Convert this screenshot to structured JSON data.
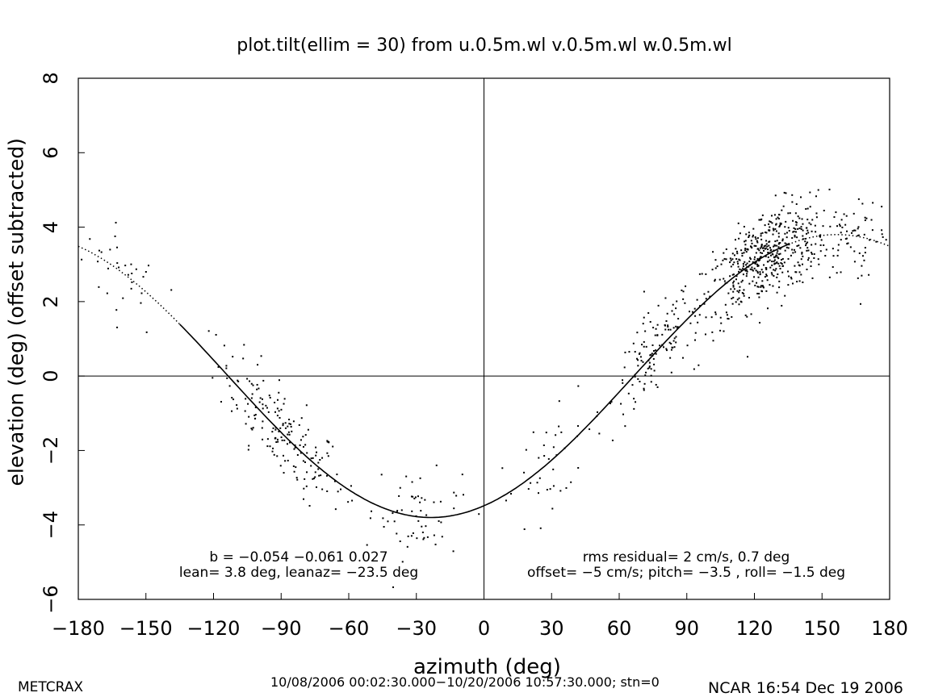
{
  "chart_data": {
    "type": "scatter",
    "title": "plot.tilt(ellim = 30) from u.0.5m.wl v.0.5m.wl w.0.5m.wl",
    "xlabel": "azimuth (deg)",
    "ylabel": "elevation (deg)  (offset subtracted)",
    "xlim": [
      -180,
      180
    ],
    "ylim": [
      -6,
      8
    ],
    "xticks": [
      -180,
      -150,
      -120,
      -90,
      -60,
      -30,
      0,
      30,
      60,
      90,
      120,
      150,
      180
    ],
    "yticks": [
      -6,
      -4,
      -2,
      0,
      2,
      4,
      6,
      8
    ],
    "grid": false,
    "reference_lines": {
      "x": 0,
      "y": 0
    },
    "fit": {
      "description": "sinusoidal tilt fit",
      "lean_deg": 3.8,
      "leanaz_deg": -23.5,
      "solid_x_range": [
        -135,
        135
      ]
    },
    "point_clusters": [
      {
        "x_center": -160,
        "x_spread": 18,
        "count": 30
      },
      {
        "x_center": -90,
        "x_spread": 28,
        "count": 180
      },
      {
        "x_center": -30,
        "x_spread": 20,
        "count": 60
      },
      {
        "x_center": 30,
        "x_spread": 25,
        "count": 40
      },
      {
        "x_center": 75,
        "x_spread": 18,
        "count": 120
      },
      {
        "x_center": 125,
        "x_spread": 28,
        "count": 520
      },
      {
        "x_center": 165,
        "x_spread": 15,
        "count": 60
      }
    ],
    "annotations": {
      "left_line1": "b = −0.054 −0.061  0.027",
      "left_line2": "lean= 3.8 deg, leanaz= −23.5 deg",
      "right_line1": "rms residual= 2 cm/s, 0.7 deg",
      "right_line2": "offset= −5 cm/s; pitch= −3.5 , roll= −1.5 deg"
    }
  },
  "footer": {
    "left": "METCRAX",
    "middle": "10/08/2006 00:02:30.000−10/20/2006 10:57:30.000; stn=0",
    "right": "NCAR 16:54 Dec 19 2006"
  },
  "colors": {
    "background": "#ffffff",
    "ink": "#000000"
  }
}
